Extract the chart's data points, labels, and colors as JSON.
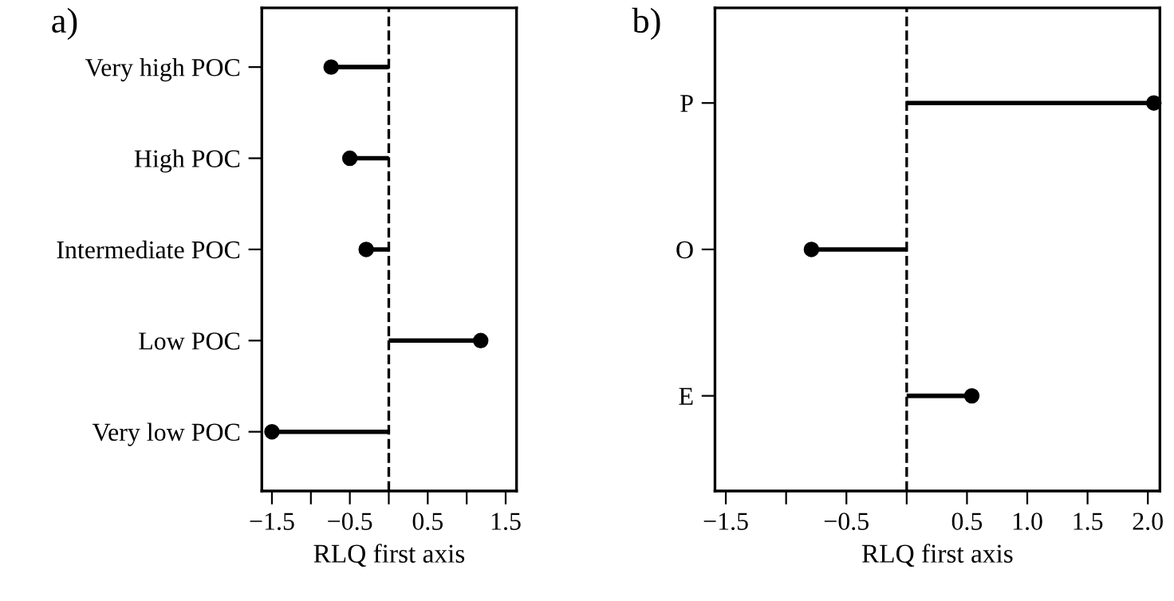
{
  "chart_data": [
    {
      "type": "lollipop",
      "orientation": "horizontal",
      "title": "a)",
      "xlabel": "RLQ first axis",
      "categories": [
        "Very high POC",
        "High POC",
        "Intermediate POC",
        "Low POC",
        "Very low POC"
      ],
      "values": [
        -0.74,
        -0.5,
        -0.29,
        1.18,
        -1.5
      ],
      "color": "#000000",
      "marker": "circle",
      "xlim": [
        -1.63,
        1.64
      ],
      "xticks": [
        -1.5,
        {
          "value": -1.0,
          "label": null
        },
        -0.5,
        {
          "value": 0.0,
          "label": null
        },
        0.5,
        {
          "value": 1.0,
          "label": null
        },
        1.5
      ],
      "ref_lines": [
        {
          "axis": "x",
          "value": 0,
          "line_style": "dashed",
          "color": "#000000"
        }
      ],
      "grid": false
    },
    {
      "type": "lollipop",
      "orientation": "horizontal",
      "title": "b)",
      "xlabel": "RLQ first axis",
      "categories": [
        "P",
        "O",
        "E"
      ],
      "values": [
        2.05,
        -0.79,
        0.54
      ],
      "color": "#000000",
      "marker": "circle",
      "xlim": [
        -1.59,
        2.1
      ],
      "xticks": [
        -1.5,
        {
          "value": -1.0,
          "label": null
        },
        -0.5,
        {
          "value": 0.0,
          "label": null
        },
        0.5,
        {
          "value": 1.0,
          "label": "1.0"
        },
        1.5,
        {
          "value": 2.0,
          "label": "2.0"
        }
      ],
      "ref_lines": [
        {
          "axis": "x",
          "value": 0,
          "line_style": "dashed",
          "color": "#000000"
        }
      ],
      "grid": false
    }
  ]
}
